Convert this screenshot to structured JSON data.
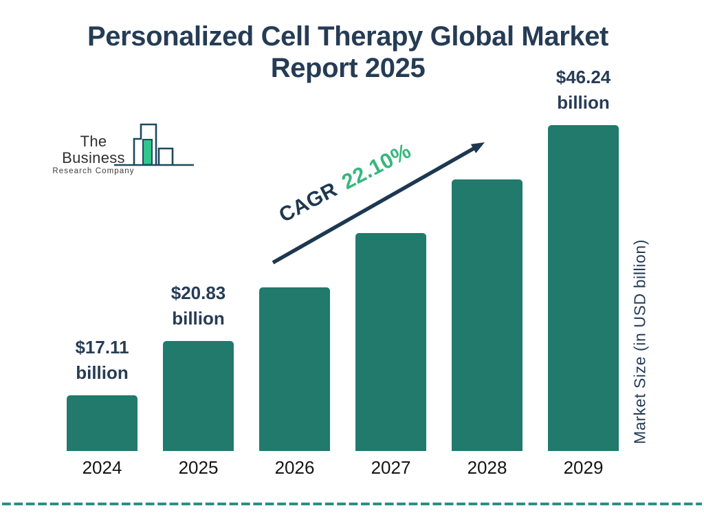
{
  "title": {
    "line1": "Personalized Cell Therapy Global Market",
    "line2": "Report 2025"
  },
  "logo": {
    "name_line1": "The Business",
    "name_line2": "Research Company",
    "icon": "bar-chart-logo-icon"
  },
  "annotation": {
    "cagr_label": "CAGR",
    "cagr_value": "22.10%",
    "arrow_icon": "growth-arrow-icon"
  },
  "y_axis": {
    "label": "Market Size (in USD billion)"
  },
  "colors": {
    "navy": "#263C55",
    "arrow_navy": "#1D3850",
    "green": "#36B77E",
    "bar": "#217A6C",
    "logo_outline": "#1D495E",
    "logo_green": "#30C68D",
    "divider": "#2A8F86",
    "year_text": "#141414"
  },
  "chart_data": {
    "type": "bar",
    "title": "Personalized Cell Therapy Global Market Report 2025",
    "categories": [
      "2024",
      "2025",
      "2026",
      "2027",
      "2028",
      "2029"
    ],
    "values": [
      17.11,
      20.83,
      25.43,
      31.06,
      37.92,
      46.24
    ],
    "labeled_indices": [
      0,
      1,
      5
    ],
    "value_labels": [
      {
        "amount": "$17.11",
        "unit": "billion"
      },
      {
        "amount": "$20.83",
        "unit": "billion"
      },
      null,
      null,
      null,
      {
        "amount": "$46.24",
        "unit": "billion"
      }
    ],
    "cagr": "22.10%",
    "xlabel": "",
    "ylabel": "Market Size (in USD billion)",
    "bar_color": "#217A6C",
    "legend": false,
    "grid": false,
    "axes_drawn": false,
    "style_note": "bar heights increase in equal visual steps per year (stylized infographic, not proportional to values)"
  }
}
